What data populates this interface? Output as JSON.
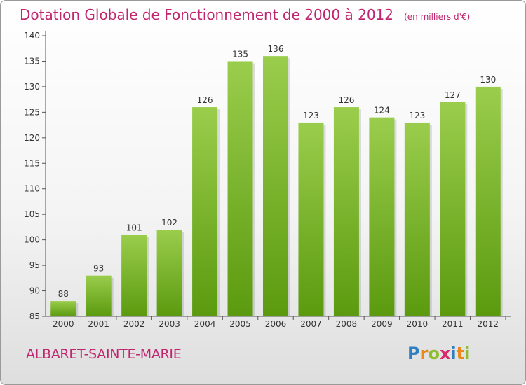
{
  "title": "Dotation Globale de Fonctionnement de 2000 à 2012",
  "unit": "(en milliers d'€)",
  "commune": "ALBARET-SAINTE-MARIE",
  "logo": {
    "letters": [
      {
        "ch": "P",
        "color": "#2f7fc1"
      },
      {
        "ch": "r",
        "color": "#e8891c"
      },
      {
        "ch": "o",
        "color": "#8dbd2c"
      },
      {
        "ch": "x",
        "color": "#d82a6a"
      },
      {
        "ch": "i",
        "color": "#2f7fc1"
      },
      {
        "ch": "t",
        "color": "#e8891c"
      },
      {
        "ch": "i",
        "color": "#8dbd2c"
      }
    ]
  },
  "colors": {
    "bar_top": "#9acd4c",
    "bar_bottom": "#5b9a0f",
    "title": "#c0266f"
  },
  "chart_data": {
    "type": "bar",
    "categories": [
      "2000",
      "2001",
      "2002",
      "2003",
      "2004",
      "2005",
      "2006",
      "2007",
      "2008",
      "2009",
      "2010",
      "2011",
      "2012"
    ],
    "values": [
      88,
      93,
      101,
      102,
      126,
      135,
      136,
      123,
      126,
      124,
      123,
      127,
      130
    ],
    "ylim": [
      85,
      140
    ],
    "yticks": [
      85,
      90,
      95,
      100,
      105,
      110,
      115,
      120,
      125,
      130,
      135,
      140
    ],
    "grid": false,
    "xlabel": "",
    "ylabel": ""
  }
}
